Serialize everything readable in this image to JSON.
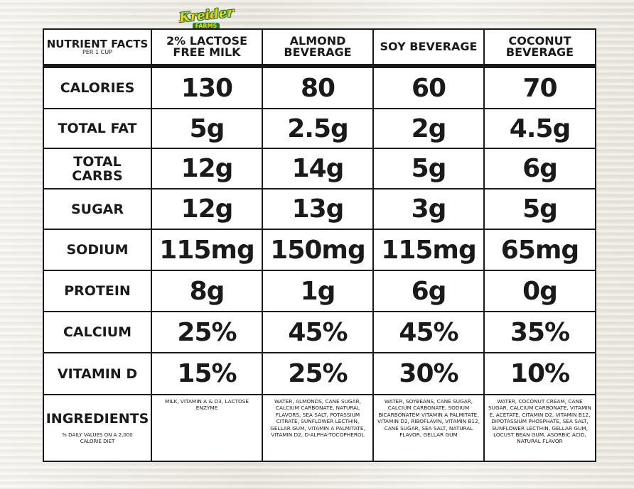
{
  "logo": {
    "script_text": "Kreider",
    "farms_text": "FARMS"
  },
  "header": {
    "nutrient_facts": "NUTRIENT FACTS",
    "per_cup": "PER 1 CUP",
    "columns": [
      "2% LACTOSE FREE MILK",
      "ALMOND BEVERAGE",
      "SOY BEVERAGE",
      "COCONUT BEVERAGE"
    ]
  },
  "rows": [
    {
      "label": "CALORIES",
      "values": [
        "130",
        "80",
        "60",
        "70"
      ]
    },
    {
      "label": "TOTAL FAT",
      "values": [
        "5g",
        "2.5g",
        "2g",
        "4.5g"
      ]
    },
    {
      "label": "TOTAL CARBS",
      "values": [
        "12g",
        "14g",
        "5g",
        "6g"
      ]
    },
    {
      "label": "SUGAR",
      "values": [
        "12g",
        "13g",
        "3g",
        "5g"
      ]
    },
    {
      "label": "SODIUM",
      "values": [
        "115mg",
        "150mg",
        "115mg",
        "65mg"
      ]
    },
    {
      "label": "PROTEIN",
      "values": [
        "8g",
        "1g",
        "6g",
        "0g"
      ]
    },
    {
      "label": "CALCIUM",
      "values": [
        "25%",
        "45%",
        "45%",
        "35%"
      ]
    },
    {
      "label": "VITAMIN D",
      "values": [
        "15%",
        "25%",
        "30%",
        "10%"
      ]
    }
  ],
  "ingredients": {
    "label": "INGREDIENTS",
    "note": "% DAILY VALUES ON A 2,000 CALORIE DIET",
    "values": [
      "MILK, VITAMIN A & D3, LACTOSE ENZYME",
      "WATER, ALMONDS, CANE SUGAR, CALCIUM CARBONATE, NATURAL FLAVORS, SEA SALT, POTASSIUM CITRATE, SUNFLOWER LECTHIN, GELLAR GUM, VITAMIN A PALMITATE, VITAMIN D2, D-ALPHA-TOCOPHEROL",
      "WATER, SOYBEANS, CANE SUGAR, CALCIUM CARBONATE, SODIUM BICARBONATEM VITAMIN A PALMITATE, VITAMIN D2, RIBOFLAVIN, VITAMIN B12, CANE SUGAR, SEA SALT, NATURAL FLAVOR, GELLAR GUM",
      "WATER, COCONUT CREAM, CANE SUGAR, CALCIUM CARBONATE, VITAMIN E, ACETATE, CITAMIN D2, VITAMIN B12, DIPOTASSIUM PHOSPHATE, SEA SALT, SUNFLOWER LECTHIN, GELLAR GUM, LOCUST BEAN GUM, ASORBIC ACID, NATURAL FLAVOR"
    ]
  }
}
